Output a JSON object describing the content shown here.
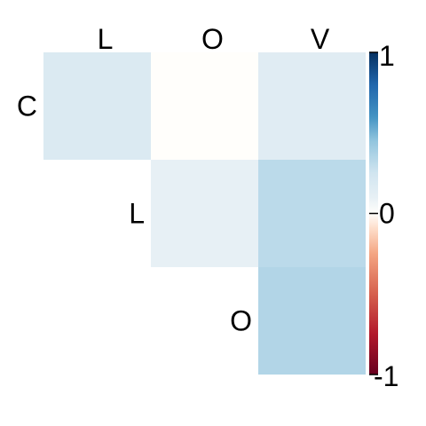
{
  "chart_data": {
    "type": "heatmap",
    "layout": "upper-triangle correlation matrix",
    "column_labels": [
      "L",
      "O",
      "V"
    ],
    "row_labels": [
      "C",
      "L",
      "O"
    ],
    "cells": [
      {
        "row": 0,
        "col": 0,
        "value": 0.18
      },
      {
        "row": 0,
        "col": 1,
        "value": 0.0
      },
      {
        "row": 0,
        "col": 2,
        "value": 0.15
      },
      {
        "row": 1,
        "col": 1,
        "value": 0.1
      },
      {
        "row": 1,
        "col": 2,
        "value": 0.32
      },
      {
        "row": 2,
        "col": 2,
        "value": 0.35
      }
    ],
    "color_scale": {
      "range": [
        -1,
        1
      ],
      "stops": [
        {
          "value": -1,
          "color": "#67001f"
        },
        {
          "value": -0.75,
          "color": "#b2182b"
        },
        {
          "value": -0.5,
          "color": "#d6604d"
        },
        {
          "value": -0.25,
          "color": "#f4a582"
        },
        {
          "value": -0.1,
          "color": "#fddbc7"
        },
        {
          "value": 0,
          "color": "#fffefb"
        },
        {
          "value": 0.1,
          "color": "#e7f0f5"
        },
        {
          "value": 0.25,
          "color": "#d1e5f0"
        },
        {
          "value": 0.45,
          "color": "#92c5de"
        },
        {
          "value": 0.6,
          "color": "#4393c3"
        },
        {
          "value": 0.8,
          "color": "#2166ac"
        },
        {
          "value": 1,
          "color": "#053061"
        }
      ],
      "tick_labels": [
        "1",
        "0",
        "-1"
      ]
    }
  }
}
